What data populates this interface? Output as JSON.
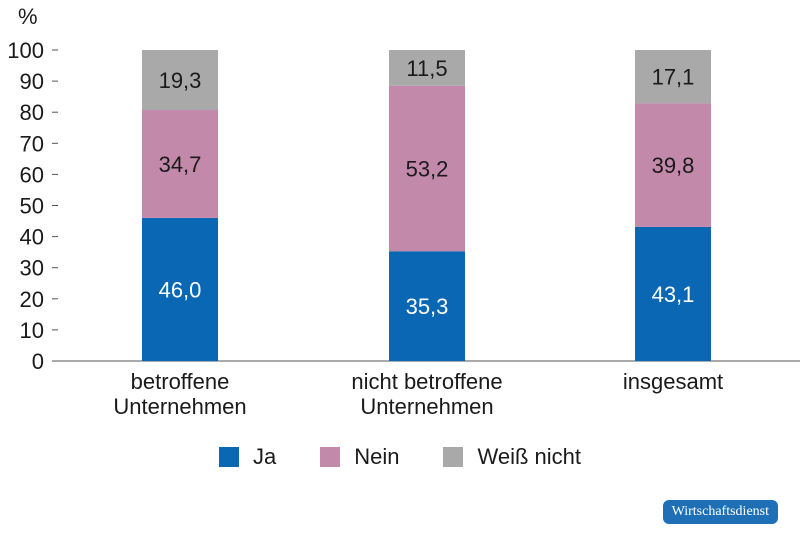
{
  "chart_data": {
    "type": "bar",
    "stacked": true,
    "y_unit": "%",
    "ylim": [
      0,
      100
    ],
    "yticks": [
      0,
      10,
      20,
      30,
      40,
      50,
      60,
      70,
      80,
      90,
      100
    ],
    "categories": [
      [
        "betroffene",
        "Unternehmen"
      ],
      [
        "nicht betroffene",
        "Unternehmen"
      ],
      [
        "insgesamt"
      ]
    ],
    "series": [
      {
        "name": "Ja",
        "color": "#0a67b4",
        "label_color": "#ffffff",
        "values": [
          46.0,
          35.3,
          43.1
        ],
        "labels": [
          "46,0",
          "35,3",
          "43,1"
        ]
      },
      {
        "name": "Nein",
        "color": "#c289ab",
        "label_color": "#1a1a1a",
        "values": [
          34.7,
          53.2,
          39.8
        ],
        "labels": [
          "34,7",
          "53,2",
          "39,8"
        ]
      },
      {
        "name": "Weiß nicht",
        "color": "#a9a9a9",
        "label_color": "#1a1a1a",
        "values": [
          19.3,
          11.5,
          17.1
        ],
        "labels": [
          "19,3",
          "11,5",
          "17,1"
        ]
      }
    ],
    "legend_position": "bottom",
    "grid": false
  },
  "source_badge": "Wirtschaftsdienst"
}
